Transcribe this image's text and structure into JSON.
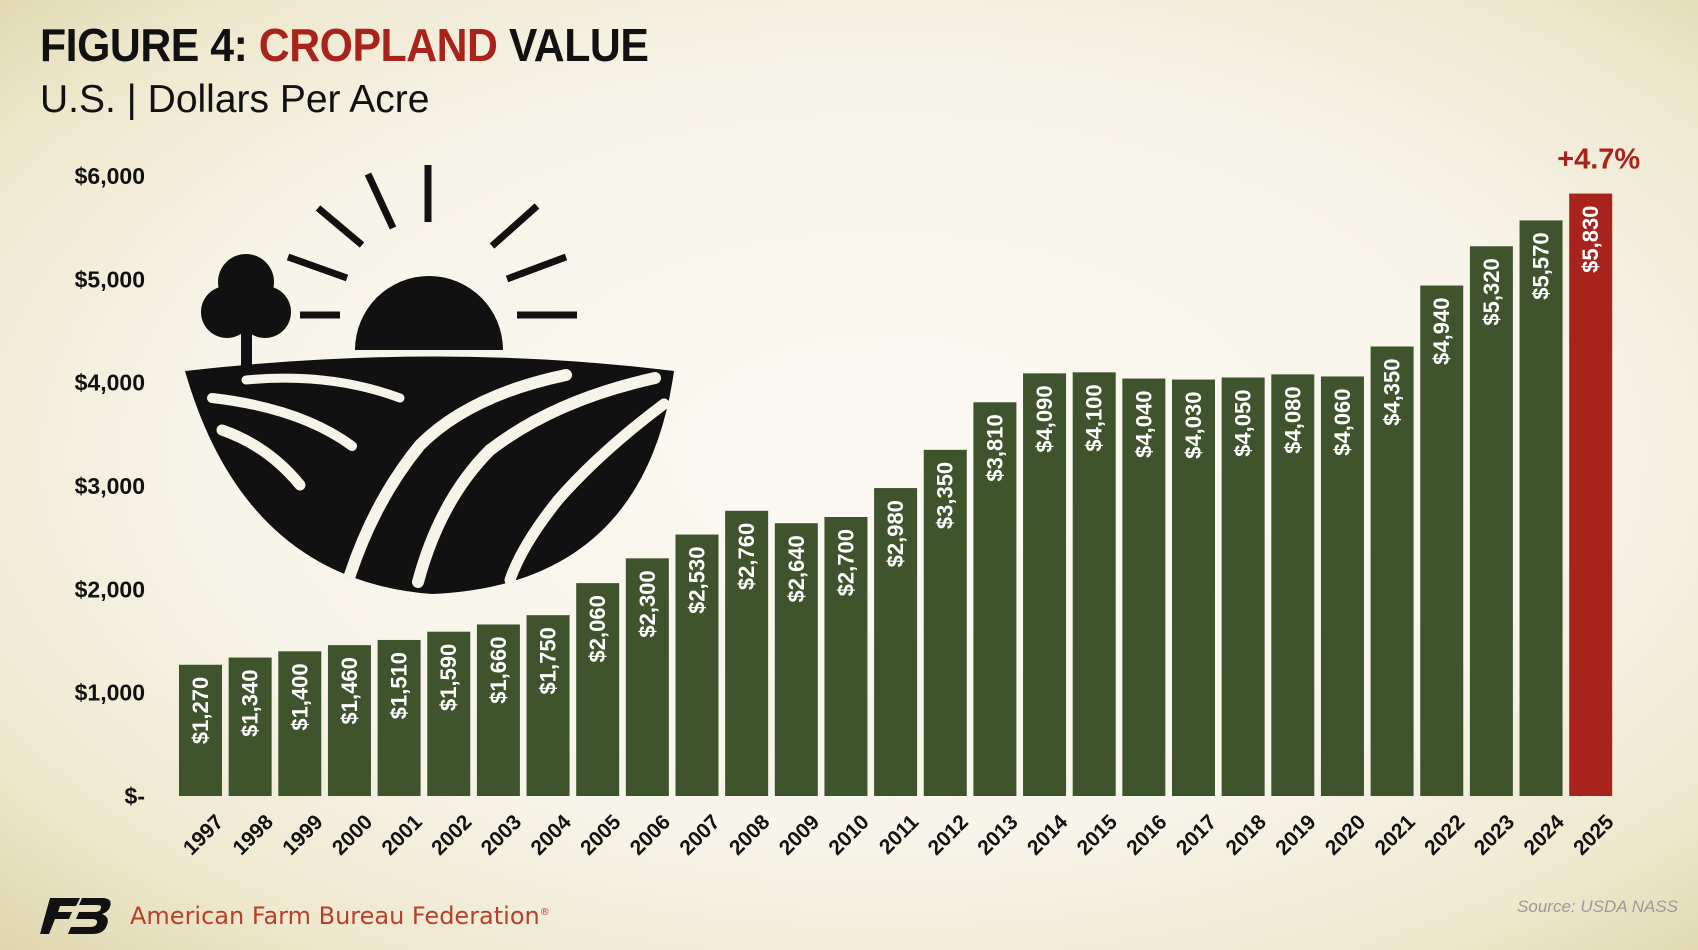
{
  "header": {
    "title_prefix": "FIGURE 4: ",
    "title_highlight": "CROPLAND",
    "title_suffix": " VALUE",
    "subtitle": "U.S. | Dollars Per Acre"
  },
  "footer": {
    "org_name": "American Farm Bureau Federation",
    "org_mark": "®",
    "source": "Source: USDA NASS"
  },
  "icons": {
    "illustration": "farm-field-sunrise-icon",
    "logo": "afbf-logo-icon"
  },
  "colors": {
    "bar": "#3f532d",
    "bar_highlight": "#a8231c",
    "accent": "#a8231c",
    "label_text": "#ffffff"
  },
  "chart_data": {
    "type": "bar",
    "title": "FIGURE 4: CROPLAND VALUE",
    "subtitle": "U.S. | Dollars Per Acre",
    "categories": [
      "1997",
      "1998",
      "1999",
      "2000",
      "2001",
      "2002",
      "2003",
      "2004",
      "2005",
      "2006",
      "2007",
      "2008",
      "2009",
      "2010",
      "2011",
      "2012",
      "2013",
      "2014",
      "2015",
      "2016",
      "2017",
      "2018",
      "2019",
      "2020",
      "2021",
      "2022",
      "2023",
      "2024",
      "2025"
    ],
    "values": [
      1270,
      1340,
      1400,
      1460,
      1510,
      1590,
      1660,
      1750,
      2060,
      2300,
      2530,
      2760,
      2640,
      2700,
      2980,
      3350,
      3810,
      4090,
      4100,
      4040,
      4030,
      4050,
      4080,
      4060,
      4350,
      4940,
      5320,
      5570,
      5830
    ],
    "data_labels": [
      "$1,270",
      "$1,340",
      "$1,400",
      "$1,460",
      "$1,510",
      "$1,590",
      "$1,660",
      "$1,750",
      "$2,060",
      "$2,300",
      "$2,530",
      "$2,760",
      "$2,640",
      "$2,700",
      "$2,980",
      "$3,350",
      "$3,810",
      "$4,090",
      "$4,100",
      "$4,040",
      "$4,030",
      "$4,050",
      "$4,080",
      "$4,060",
      "$4,350",
      "$4,940",
      "$5,320",
      "$5,570",
      "$5,830"
    ],
    "y_ticks": [
      0,
      1000,
      2000,
      3000,
      4000,
      5000,
      6000
    ],
    "y_tick_labels": [
      "$-",
      "$1,000",
      "$2,000",
      "$3,000",
      "$4,000",
      "$5,000",
      "$6,000"
    ],
    "ylim": [
      0,
      6000
    ],
    "highlight_category": "2025",
    "annotation": "+4.7%",
    "xlabel": "",
    "ylabel": "",
    "grid": false,
    "legend": "none"
  }
}
